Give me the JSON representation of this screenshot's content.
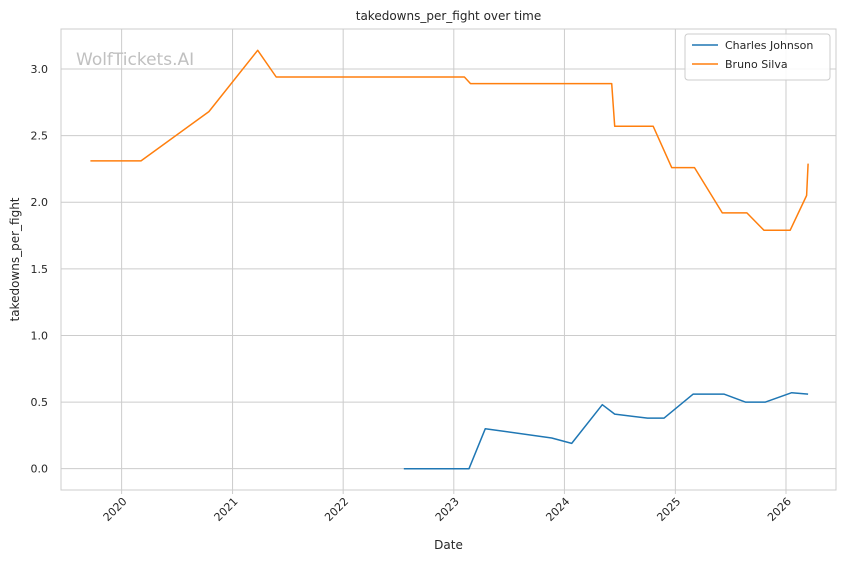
{
  "chart_data": {
    "type": "line",
    "title": "takedowns_per_fight over time",
    "xlabel": "Date",
    "ylabel": "takedowns_per_fight",
    "watermark": "WolfTickets.AI",
    "xlim": [
      "2019-06-15",
      "2026-06-15"
    ],
    "ylim": [
      -0.16,
      3.3
    ],
    "x_ticks": [
      "2020-01-01",
      "2021-01-01",
      "2022-01-01",
      "2023-01-01",
      "2024-01-01",
      "2025-01-01",
      "2026-01-01"
    ],
    "x_tick_labels": [
      "2020",
      "2021",
      "2022",
      "2023",
      "2024",
      "2025",
      "2026"
    ],
    "y_ticks": [
      0.0,
      0.5,
      1.0,
      1.5,
      2.0,
      2.5,
      3.0
    ],
    "y_tick_labels": [
      "0.0",
      "0.5",
      "1.0",
      "1.5",
      "2.0",
      "2.5",
      "3.0"
    ],
    "grid": true,
    "legend_position": "top-right",
    "series": [
      {
        "name": "Charles Johnson",
        "color": "#1f77b4",
        "points": [
          [
            "2022-07-20",
            0.0
          ],
          [
            "2023-02-20",
            0.0
          ],
          [
            "2023-04-15",
            0.3
          ],
          [
            "2023-11-20",
            0.23
          ],
          [
            "2024-01-25",
            0.19
          ],
          [
            "2024-05-05",
            0.48
          ],
          [
            "2024-06-15",
            0.41
          ],
          [
            "2024-10-01",
            0.38
          ],
          [
            "2024-11-25",
            0.38
          ],
          [
            "2025-03-01",
            0.56
          ],
          [
            "2025-06-10",
            0.56
          ],
          [
            "2025-08-20",
            0.5
          ],
          [
            "2025-10-25",
            0.5
          ],
          [
            "2026-01-20",
            0.57
          ],
          [
            "2026-03-15",
            0.56
          ]
        ]
      },
      {
        "name": "Bruno Silva",
        "color": "#ff7f0e",
        "points": [
          [
            "2019-09-20",
            2.31
          ],
          [
            "2020-03-05",
            2.31
          ],
          [
            "2020-10-15",
            2.68
          ],
          [
            "2021-03-25",
            3.14
          ],
          [
            "2021-05-25",
            2.94
          ],
          [
            "2023-02-05",
            2.94
          ],
          [
            "2023-02-25",
            2.89
          ],
          [
            "2024-06-05",
            2.89
          ],
          [
            "2024-06-15",
            2.57
          ],
          [
            "2024-10-20",
            2.57
          ],
          [
            "2024-12-20",
            2.26
          ],
          [
            "2025-03-05",
            2.26
          ],
          [
            "2025-06-05",
            1.92
          ],
          [
            "2025-08-25",
            1.92
          ],
          [
            "2025-10-20",
            1.79
          ],
          [
            "2026-01-15",
            1.79
          ],
          [
            "2026-03-10",
            2.05
          ],
          [
            "2026-03-15",
            2.29
          ]
        ]
      }
    ]
  }
}
